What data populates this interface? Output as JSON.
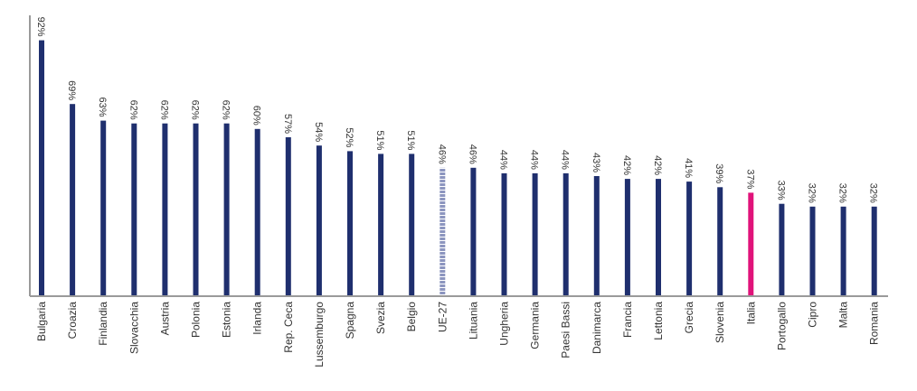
{
  "chart_data": {
    "type": "bar",
    "title": "",
    "xlabel": "",
    "ylabel": "",
    "ylim": [
      0,
      100
    ],
    "grid": false,
    "categories": [
      "Bulgaria",
      "Croazia",
      "Finlandia",
      "Slovacchia",
      "Austria",
      "Polonia",
      "Estonia",
      "Irlanda",
      "Rep. Ceca",
      "Lussemburgo",
      "Spagna",
      "Svezia",
      "Belgio",
      "UE-27",
      "Lituania",
      "Ungheria",
      "Germania",
      "Paesi Bassi",
      "Danimarca",
      "Francia",
      "Lettonia",
      "Grecia",
      "Slovenia",
      "Italia",
      "Portogallo",
      "Cipro",
      "Malta",
      "Romania"
    ],
    "values": [
      92,
      69,
      63,
      62,
      62,
      62,
      62,
      60,
      57,
      54,
      52,
      51,
      51,
      46,
      46,
      44,
      44,
      44,
      43,
      42,
      42,
      41,
      39,
      37,
      33,
      32,
      32,
      32
    ],
    "value_labels": [
      "92%",
      "69%",
      "63%",
      "62%",
      "62%",
      "62%",
      "62%",
      "60%",
      "57%",
      "54%",
      "52%",
      "51%",
      "51%",
      "46%",
      "46%",
      "44%",
      "44%",
      "44%",
      "43%",
      "42%",
      "42%",
      "41%",
      "39%",
      "37%",
      "33%",
      "32%",
      "32%",
      "32%"
    ],
    "highlight": {
      "UE-27": "striped",
      "Italia": "magenta"
    },
    "colors": {
      "bar": "#1f2f6e",
      "eu_bar": "#8c95bf",
      "eu_stripe": "#ffffff",
      "italy_bar": "#e0137a",
      "italy_label": "#e0137a",
      "axis": "#9a9a9a",
      "text": "#333333"
    }
  }
}
